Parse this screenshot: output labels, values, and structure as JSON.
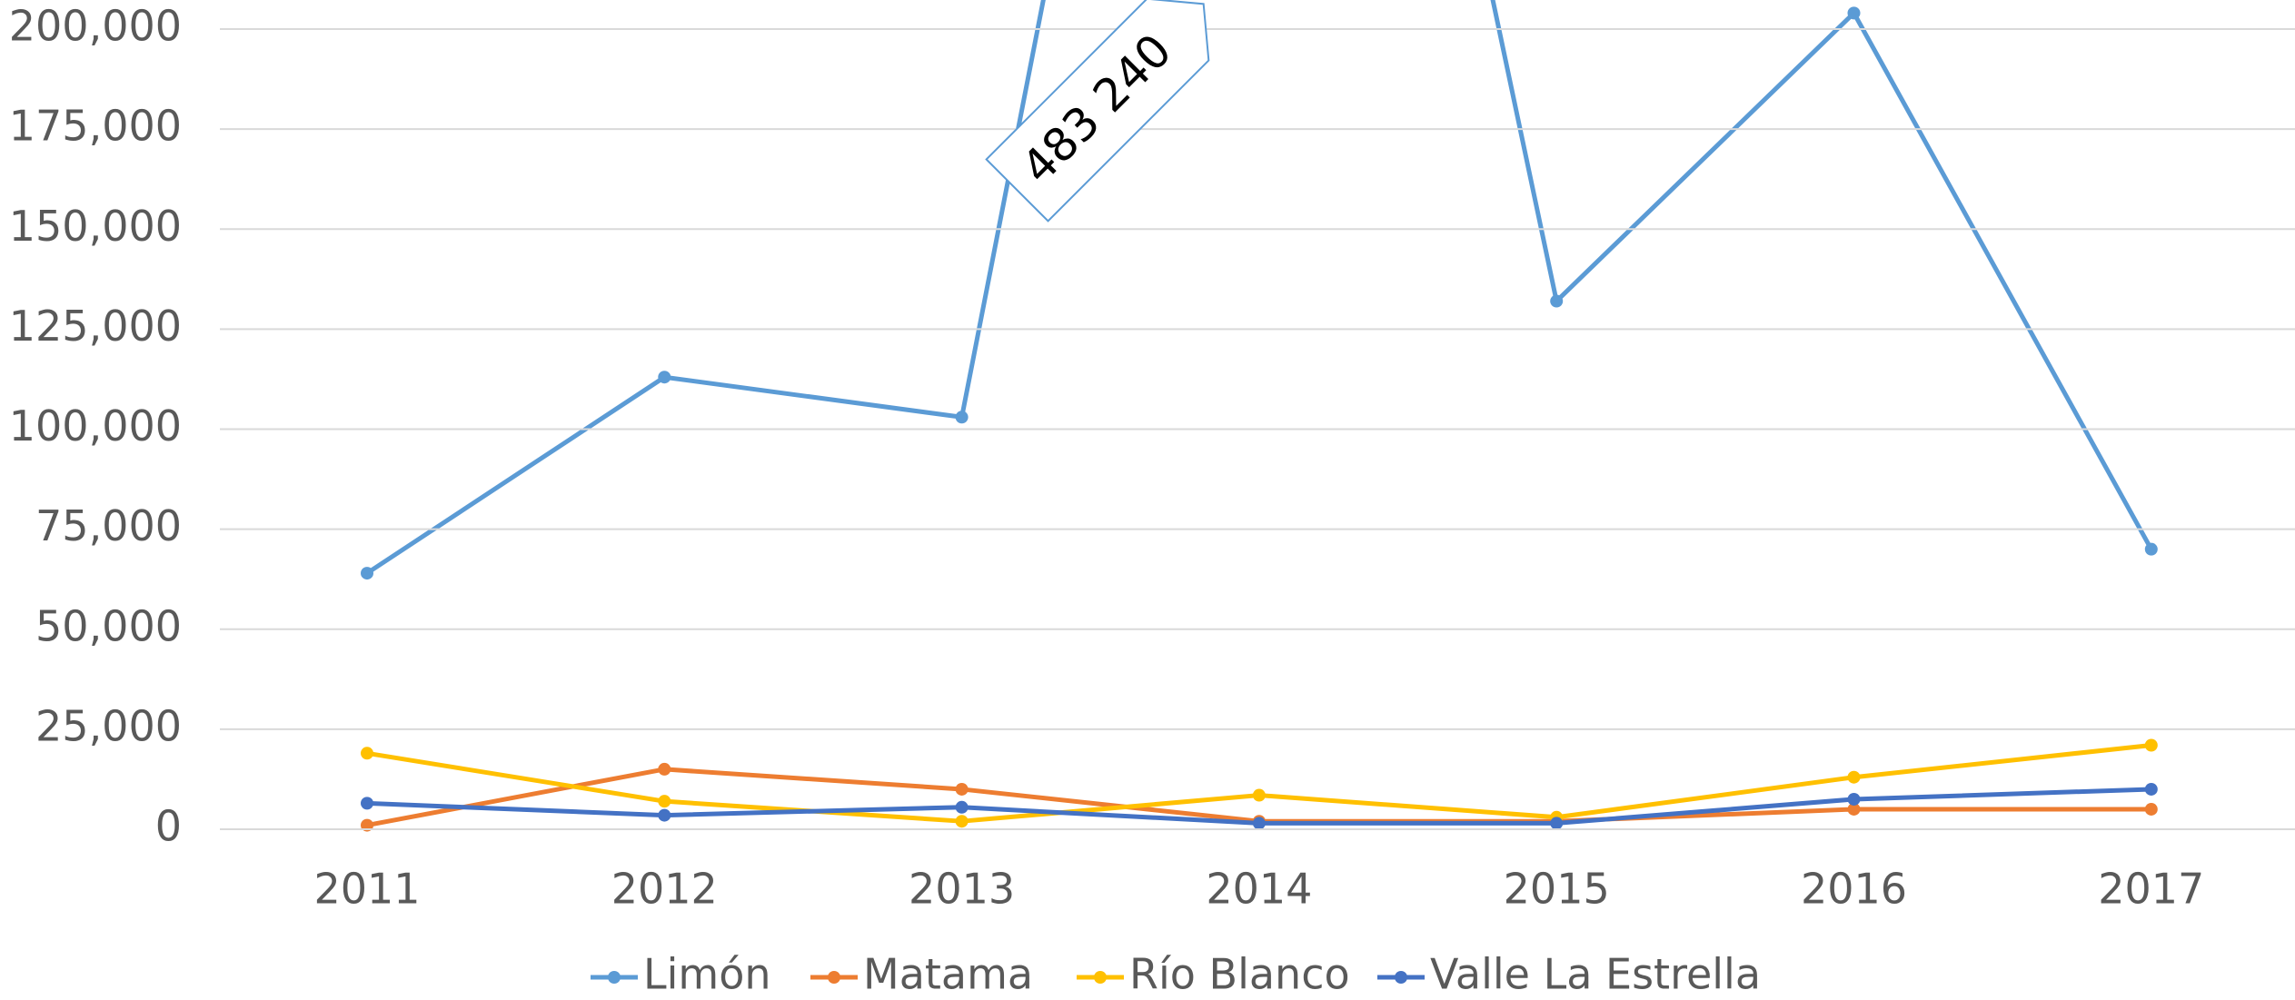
{
  "chart_data": {
    "type": "line",
    "categories": [
      "2011",
      "2012",
      "2013",
      "2014",
      "2015",
      "2016",
      "2017"
    ],
    "series": [
      {
        "name": "Limón",
        "color": "#5b9bd5",
        "values": [
          64000,
          113000,
          103000,
          483240,
          132000,
          204000,
          70000
        ],
        "value_labels": [
          null,
          null,
          null,
          "483 240",
          null,
          null,
          null
        ]
      },
      {
        "name": "Matama",
        "color": "#ed7d31",
        "values": [
          1000,
          15000,
          10000,
          2000,
          2000,
          5000,
          5000
        ]
      },
      {
        "name": "Río Blanco",
        "color": "#ffc000",
        "values": [
          19000,
          7000,
          2000,
          8500,
          3000,
          13000,
          21000
        ]
      },
      {
        "name": "Valle La Estrella",
        "color": "#4472c4",
        "values": [
          6500,
          3500,
          5500,
          1500,
          1500,
          7500,
          10000
        ]
      }
    ],
    "ylim": [
      0,
      200000
    ],
    "yticks": [
      0,
      {
        "value": 25000,
        "label": "25,000"
      },
      {
        "value": 50000,
        "label": "50,000"
      },
      {
        "value": 75000,
        "label": "75,000"
      },
      {
        "value": 100000,
        "label": "100,000"
      },
      {
        "value": 125000,
        "label": "125,000"
      },
      {
        "value": 150000,
        "label": "150,000"
      },
      {
        "value": 175000,
        "label": "175,000"
      },
      {
        "value": 200000,
        "label": "200,000"
      }
    ],
    "grid": true,
    "legend": "bottom"
  }
}
